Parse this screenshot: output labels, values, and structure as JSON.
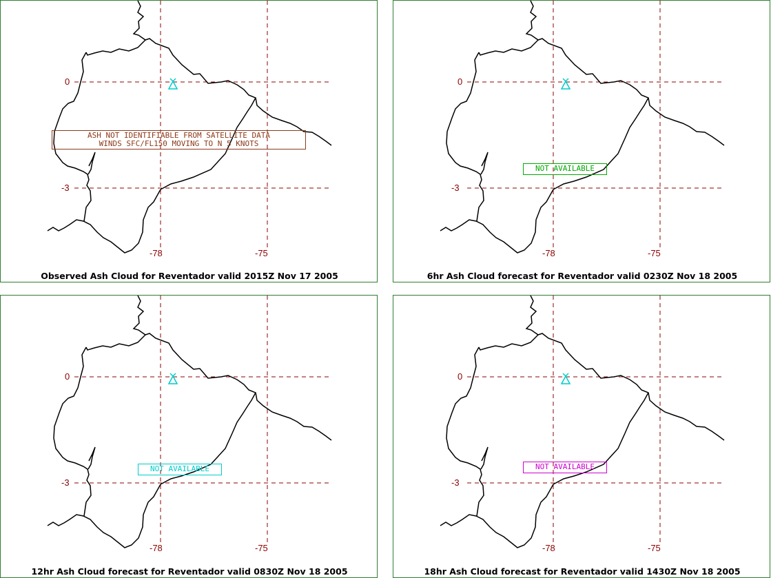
{
  "map": {
    "lat_labels": [
      "0",
      "-3"
    ],
    "lon_labels": [
      "-78",
      "-75"
    ],
    "volcano_icon": "volcano-icon",
    "colors": {
      "frame": "#2f7d2f",
      "grid": "#8b0000",
      "volcano": "#00cccc",
      "coast": "#000000"
    }
  },
  "panels": [
    {
      "caption": "Observed Ash Cloud for Reventador valid 2015Z Nov 17 2005",
      "notice_lines": [
        "ASH NOT IDENTIFIABLE FROM SATELLITE DATA",
        "WINDS SFC/FL150 MOVING TO N 5 KNOTS"
      ],
      "notice_color": "#8b3a1a"
    },
    {
      "caption": "6hr Ash Cloud forecast for Reventador valid 0230Z Nov 18 2005",
      "notice_lines": [
        "NOT AVAILABLE"
      ],
      "notice_color": "#00aa00"
    },
    {
      "caption": "12hr Ash Cloud forecast for Reventador valid 0830Z Nov 18 2005",
      "notice_lines": [
        "NOT AVAILABLE"
      ],
      "notice_color": "#00cccc"
    },
    {
      "caption": "18hr Ash Cloud forecast for Reventador valid 1430Z Nov 18 2005",
      "notice_lines": [
        "NOT AVAILABLE"
      ],
      "notice_color": "#cc00cc"
    }
  ]
}
